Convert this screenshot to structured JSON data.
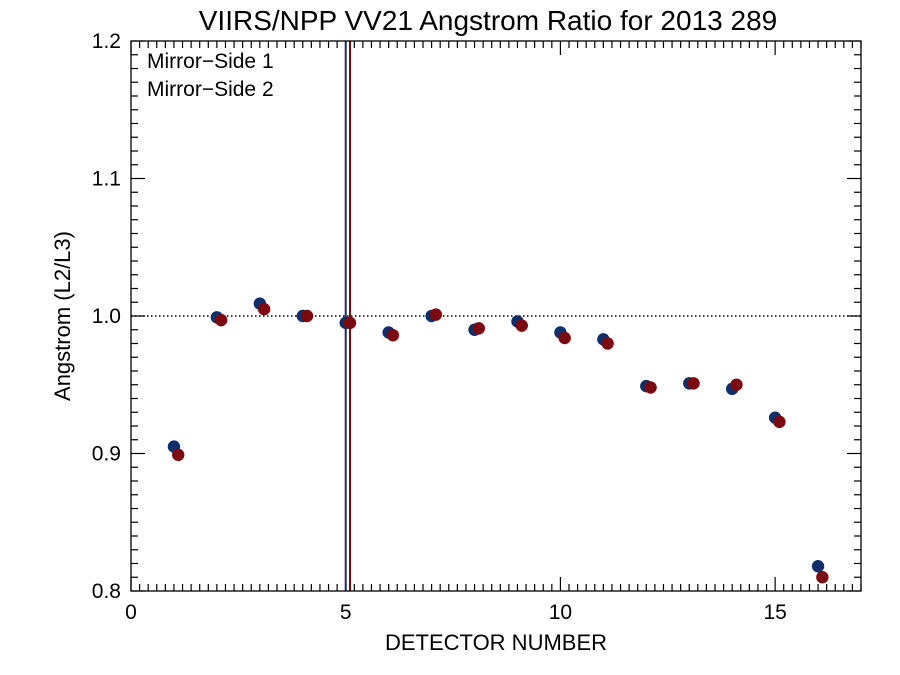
{
  "chart_data": {
    "type": "scatter",
    "title": "VIIRS/NPP VV21 Angstrom Ratio for 2013 289",
    "xlabel": "DETECTOR NUMBER",
    "ylabel": "Angstrom (L2/L3)",
    "xlim": [
      0,
      17
    ],
    "ylim": [
      0.8,
      1.2
    ],
    "xticks": [
      0,
      5,
      10,
      15
    ],
    "xtick_labels": [
      "0",
      "5",
      "10",
      "15"
    ],
    "yticks": [
      0.8,
      0.9,
      1.0,
      1.1,
      1.2
    ],
    "ytick_labels": [
      "0.8",
      "0.9",
      "1.0",
      "1.1",
      "1.2"
    ],
    "reference_line": {
      "y": 1.0,
      "style": "dotted"
    },
    "vertical_lines": [
      {
        "x": 5.0,
        "color": "#0d2f6b"
      },
      {
        "x": 5.1,
        "color": "#7a0a10"
      }
    ],
    "legend_position": "top-left",
    "grid": false,
    "series": [
      {
        "name": "Mirror−Side 1",
        "color": "#0d2f6b",
        "x": [
          1,
          2,
          3,
          4,
          5,
          6,
          7,
          8,
          9,
          10,
          11,
          12,
          13,
          14,
          15,
          16
        ],
        "y": [
          0.905,
          0.999,
          1.009,
          1.0,
          0.995,
          0.988,
          1.0,
          0.99,
          0.996,
          0.988,
          0.983,
          0.949,
          0.951,
          0.947,
          0.926,
          0.818
        ]
      },
      {
        "name": "Mirror−Side 2",
        "color": "#7a0a10",
        "x": [
          1.1,
          2.1,
          3.1,
          4.1,
          5.1,
          6.1,
          7.1,
          8.1,
          9.1,
          10.1,
          11.1,
          12.1,
          13.1,
          14.1,
          15.1,
          16.1
        ],
        "y": [
          0.899,
          0.997,
          1.005,
          1.0,
          0.995,
          0.986,
          1.001,
          0.991,
          0.993,
          0.984,
          0.98,
          0.948,
          0.951,
          0.95,
          0.923,
          0.81
        ]
      }
    ]
  }
}
